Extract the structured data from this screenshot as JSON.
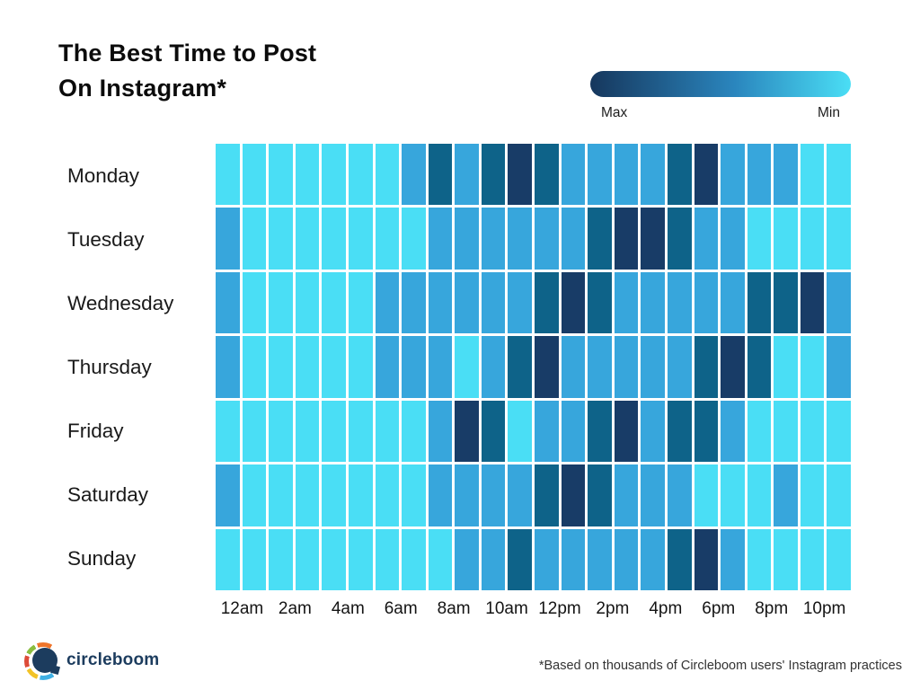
{
  "title": {
    "line1": "The Best Time to Post",
    "line2": "On Instagram*"
  },
  "legend": {
    "max_label": "Max",
    "min_label": "Min",
    "gradient": [
      "#16375D",
      "#2A85BD",
      "#4ADEF5"
    ]
  },
  "palette": {
    "levels": [
      "#4ADEF5",
      "#37A6DC",
      "#0E6389",
      "#183C67"
    ],
    "level_meaning": [
      "min",
      "medium",
      "high",
      "max"
    ]
  },
  "chart_data": {
    "type": "heatmap",
    "title": "The Best Time to Post On Instagram*",
    "rows": [
      "Monday",
      "Tuesday",
      "Wednesday",
      "Thursday",
      "Friday",
      "Saturday",
      "Sunday"
    ],
    "num_columns": 24,
    "x_tick_labels": [
      "12am",
      "2am",
      "4am",
      "6am",
      "8am",
      "10am",
      "12pm",
      "2pm",
      "4pm",
      "6pm",
      "8pm",
      "10pm"
    ],
    "value_scale": "0=min engagement (light cyan), 1=medium, 2=high, 3=max engagement (dark navy)",
    "legend_position": "top-right",
    "values": [
      [
        0,
        0,
        0,
        0,
        0,
        0,
        0,
        1,
        2,
        1,
        2,
        3,
        2,
        1,
        1,
        1,
        1,
        2,
        3,
        1,
        1,
        1,
        0,
        0
      ],
      [
        1,
        0,
        0,
        0,
        0,
        0,
        0,
        0,
        1,
        1,
        1,
        1,
        1,
        1,
        2,
        3,
        3,
        2,
        1,
        1,
        0,
        0,
        0,
        0
      ],
      [
        1,
        0,
        0,
        0,
        0,
        0,
        1,
        1,
        1,
        1,
        1,
        1,
        2,
        3,
        2,
        1,
        1,
        1,
        1,
        1,
        2,
        2,
        3,
        1
      ],
      [
        1,
        0,
        0,
        0,
        0,
        0,
        1,
        1,
        1,
        0,
        1,
        2,
        3,
        1,
        1,
        1,
        1,
        1,
        2,
        3,
        2,
        0,
        0,
        1
      ],
      [
        0,
        0,
        0,
        0,
        0,
        0,
        0,
        0,
        1,
        3,
        2,
        0,
        1,
        1,
        2,
        3,
        1,
        2,
        2,
        1,
        0,
        0,
        0,
        0
      ],
      [
        1,
        0,
        0,
        0,
        0,
        0,
        0,
        0,
        1,
        1,
        1,
        1,
        2,
        3,
        2,
        1,
        1,
        1,
        0,
        0,
        0,
        1,
        0,
        0
      ],
      [
        0,
        0,
        0,
        0,
        0,
        0,
        0,
        0,
        0,
        1,
        1,
        2,
        1,
        1,
        1,
        1,
        1,
        2,
        3,
        1,
        0,
        0,
        0,
        0
      ]
    ]
  },
  "footer": {
    "brand": "circleboom",
    "note": "*Based on thousands of Circleboom users' Instagram practices"
  }
}
